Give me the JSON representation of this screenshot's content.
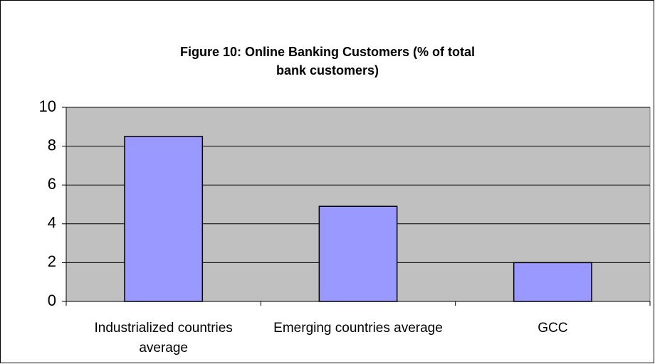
{
  "chart_data": {
    "type": "bar",
    "title": "Figure 10: Online Banking Customers (% of total bank customers)",
    "categories": [
      "Industrialized countries average",
      "Emerging countries average",
      "GCC"
    ],
    "values": [
      8.5,
      4.9,
      2.0
    ],
    "color": "#9999ff",
    "ylim": [
      0,
      10
    ],
    "yticks": [
      0,
      2,
      4,
      6,
      8,
      10
    ],
    "grid": true
  }
}
